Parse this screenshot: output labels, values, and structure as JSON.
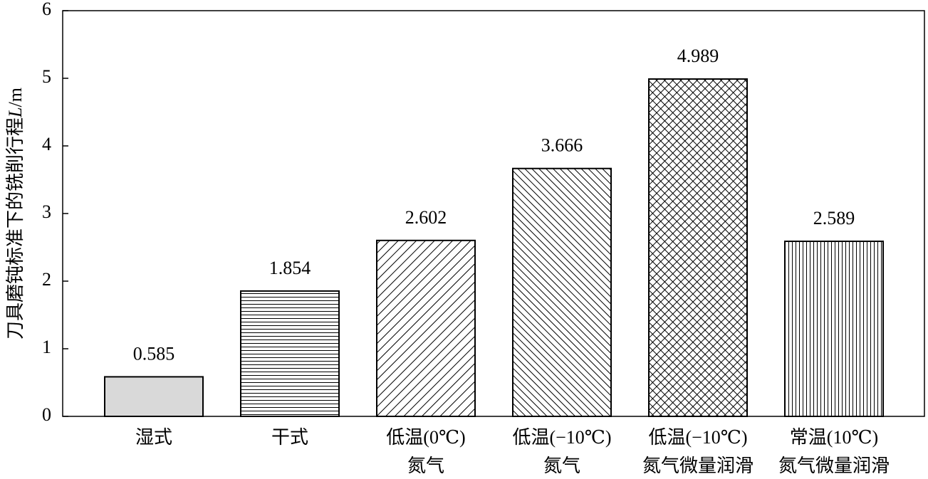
{
  "chart_data": {
    "type": "bar",
    "y_label": [
      "刀具磨钝标准下的铣削行程",
      "L",
      "/m"
    ],
    "categories": [
      [
        "湿式"
      ],
      [
        "干式"
      ],
      [
        "低温(0℃)",
        "氮气"
      ],
      [
        "低温(−10℃)",
        "氮气"
      ],
      [
        "低温(−10℃)",
        "氮气微量润滑"
      ],
      [
        "常温(10℃)",
        "氮气微量润滑"
      ]
    ],
    "values": [
      0.585,
      1.854,
      2.602,
      3.666,
      4.989,
      2.589
    ],
    "patterns": [
      "solid",
      "horizontal",
      "diag-up",
      "diag-down",
      "cross",
      "vertical"
    ],
    "color": "#d9d9d9",
    "ylim": [
      0,
      6
    ],
    "yticks": [
      0,
      1,
      2,
      3,
      4,
      5,
      6
    ]
  }
}
